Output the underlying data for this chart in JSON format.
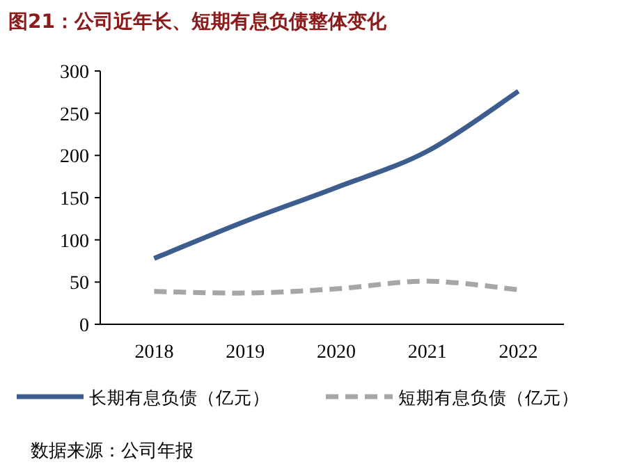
{
  "chart_data": {
    "type": "line",
    "title": "图21：公司近年长、短期有息负债整体变化",
    "categories": [
      "2018",
      "2019",
      "2020",
      "2021",
      "2022"
    ],
    "series": [
      {
        "name": "长期有息负债（亿元）",
        "color": "#3d5d8f",
        "values": [
          78,
          122,
          162,
          205,
          276
        ],
        "line_style": "solid"
      },
      {
        "name": "短期有息负债（亿元）",
        "color": "#a6a6a6",
        "values": [
          39,
          37,
          42,
          51,
          41
        ],
        "line_style": "dashed"
      }
    ],
    "ylim": [
      0,
      300
    ],
    "yticks": [
      0,
      50,
      100,
      150,
      200,
      250,
      300
    ],
    "grid": false,
    "legend": "bottom",
    "marker": "none",
    "annotations": [
      "数据来源：公司年报"
    ]
  }
}
